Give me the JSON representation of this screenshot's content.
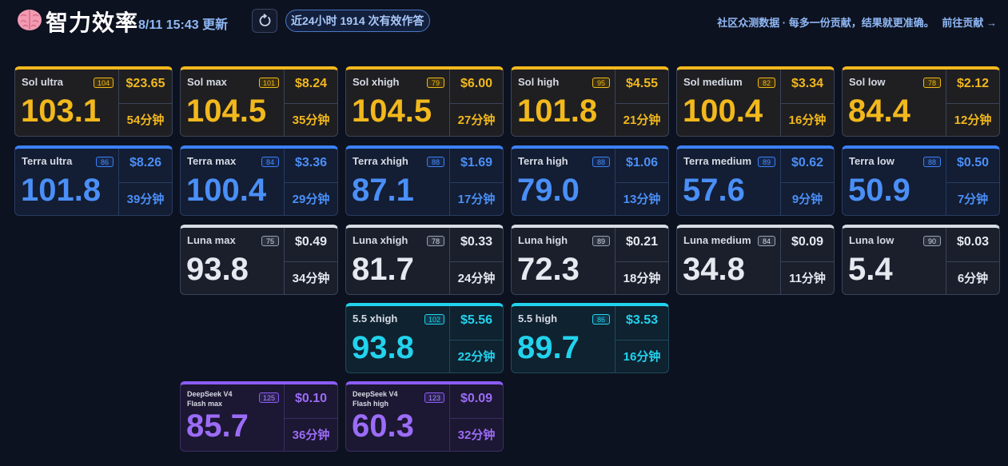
{
  "header": {
    "title": "智力效率",
    "updated": "8/11 15:43 更新",
    "answers_pill": "近24小时 1914 次有效作答",
    "community_text": "社区众测数据 · 每多一份贡献，结果就更准确。",
    "contribute_link": "前往贡献 →"
  },
  "colors": {
    "sol": "#f2b81c",
    "terra": "#3b82f6",
    "luna": "#d7dbe3",
    "g55": "#22d3ee",
    "deepseek": "#8b5cf6"
  },
  "cards": {
    "sol_ultra": {
      "name": "Sol ultra",
      "badge": "104",
      "score": "103.1",
      "price": "$23.65",
      "time": "54分钟"
    },
    "sol_max": {
      "name": "Sol max",
      "badge": "101",
      "score": "104.5",
      "price": "$8.24",
      "time": "35分钟"
    },
    "sol_xhigh": {
      "name": "Sol xhigh",
      "badge": "79",
      "score": "104.5",
      "price": "$6.00",
      "time": "27分钟"
    },
    "sol_high": {
      "name": "Sol high",
      "badge": "95",
      "score": "101.8",
      "price": "$4.55",
      "time": "21分钟"
    },
    "sol_medium": {
      "name": "Sol medium",
      "badge": "82",
      "score": "100.4",
      "price": "$3.34",
      "time": "16分钟"
    },
    "sol_low": {
      "name": "Sol low",
      "badge": "78",
      "score": "84.4",
      "price": "$2.12",
      "time": "12分钟"
    },
    "terra_ultra": {
      "name": "Terra ultra",
      "badge": "86",
      "score": "101.8",
      "price": "$8.26",
      "time": "39分钟"
    },
    "terra_max": {
      "name": "Terra max",
      "badge": "84",
      "score": "100.4",
      "price": "$3.36",
      "time": "29分钟"
    },
    "terra_xhigh": {
      "name": "Terra xhigh",
      "badge": "88",
      "score": "87.1",
      "price": "$1.69",
      "time": "17分钟"
    },
    "terra_high": {
      "name": "Terra high",
      "badge": "88",
      "score": "79.0",
      "price": "$1.06",
      "time": "13分钟"
    },
    "terra_medium": {
      "name": "Terra medium",
      "badge": "89",
      "score": "57.6",
      "price": "$0.62",
      "time": "9分钟"
    },
    "terra_low": {
      "name": "Terra low",
      "badge": "88",
      "score": "50.9",
      "price": "$0.50",
      "time": "7分钟"
    },
    "luna_max": {
      "name": "Luna max",
      "badge": "75",
      "score": "93.8",
      "price": "$0.49",
      "time": "34分钟"
    },
    "luna_xhigh": {
      "name": "Luna xhigh",
      "badge": "78",
      "score": "81.7",
      "price": "$0.33",
      "time": "24分钟"
    },
    "luna_high": {
      "name": "Luna high",
      "badge": "89",
      "score": "72.3",
      "price": "$0.21",
      "time": "18分钟"
    },
    "luna_medium": {
      "name": "Luna medium",
      "badge": "84",
      "score": "34.8",
      "price": "$0.09",
      "time": "11分钟"
    },
    "luna_low": {
      "name": "Luna low",
      "badge": "90",
      "score": "5.4",
      "price": "$0.03",
      "time": "6分钟"
    },
    "g55_xhigh": {
      "name": "5.5 xhigh",
      "badge": "102",
      "score": "93.8",
      "price": "$5.56",
      "time": "22分钟"
    },
    "g55_high": {
      "name": "5.5 high",
      "badge": "86",
      "score": "89.7",
      "price": "$3.53",
      "time": "16分钟"
    },
    "ds_max": {
      "name": "DeepSeek V4 Flash max",
      "badge": "125",
      "score": "85.7",
      "price": "$0.10",
      "time": "36分钟"
    },
    "ds_high": {
      "name": "DeepSeek V4 Flash high",
      "badge": "123",
      "score": "60.3",
      "price": "$0.09",
      "time": "32分钟"
    }
  }
}
